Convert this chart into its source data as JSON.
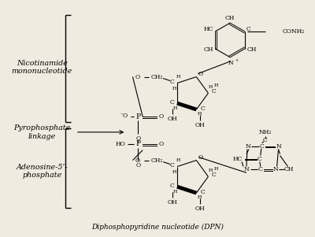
{
  "bg_color": "#f0ebe0",
  "title": "Diphosphopyridine nucleotide (DPN)",
  "title_fontsize": 6.5,
  "chem_fontsize": 6.5,
  "small_fontsize": 5.5,
  "label_fontsize": 6.8,
  "labels": {
    "nicotinamide": "Nicotinamide\nmononucleotide",
    "pyrophosphate": "Pyrophosphate\nlinkage",
    "adenosine": "Adenosine-5’-\nphosphate"
  }
}
